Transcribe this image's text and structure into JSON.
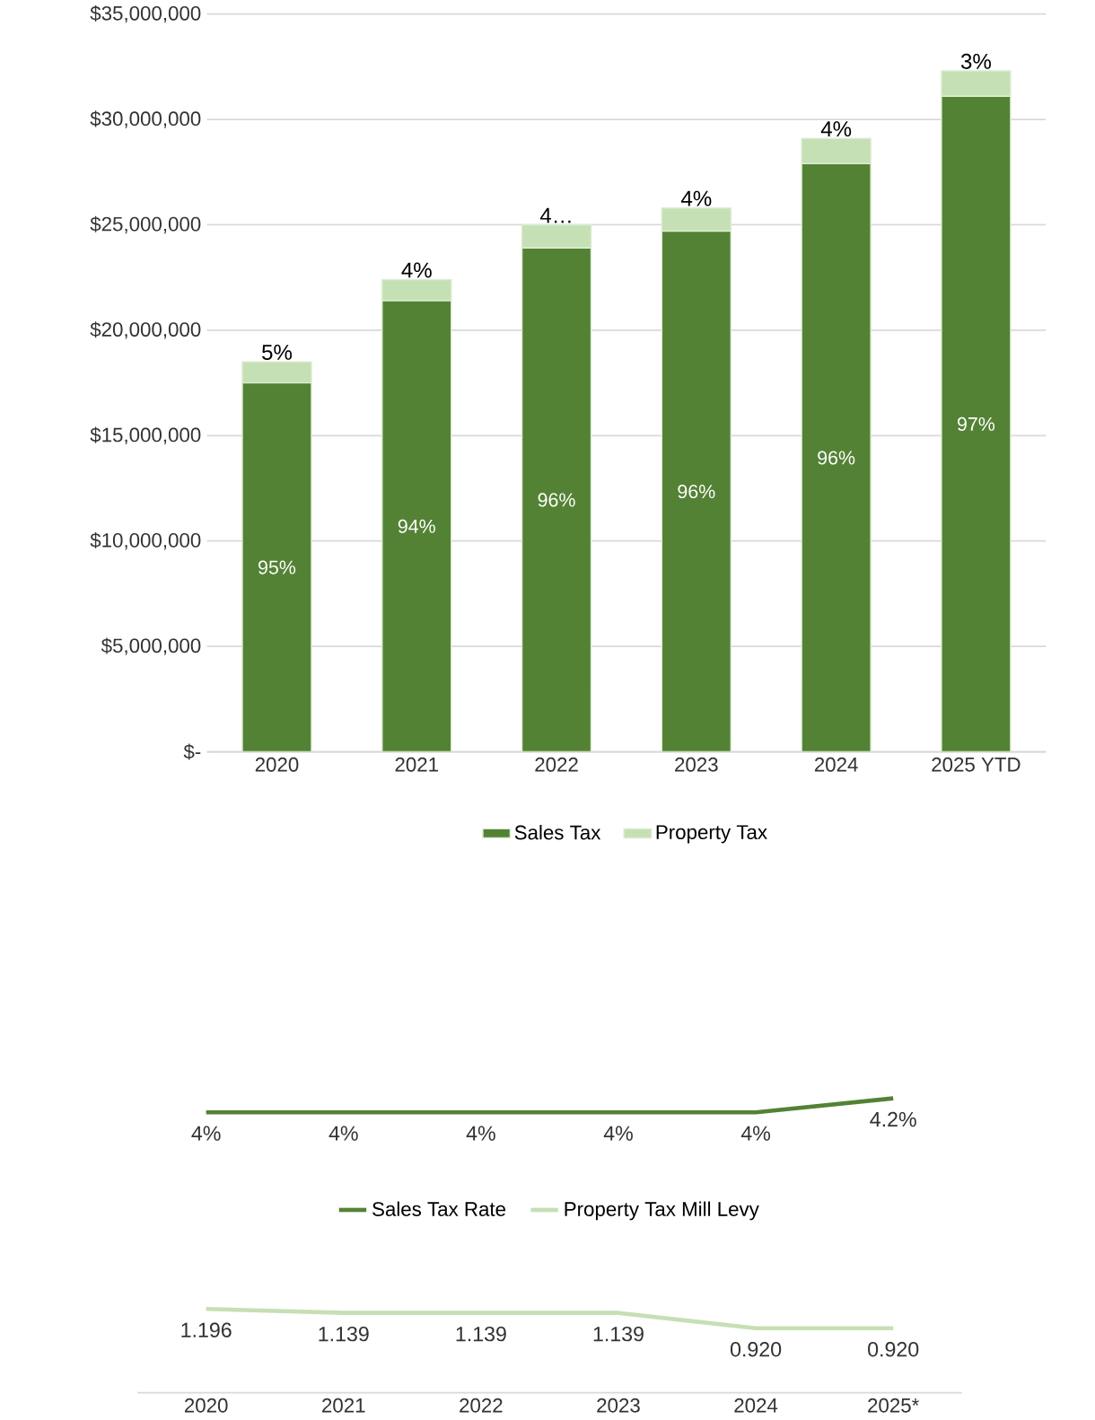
{
  "chart_data": [
    {
      "type": "bar",
      "stacked": true,
      "categories": [
        "2020",
        "2021",
        "2022",
        "2023",
        "2024",
        "2025 YTD"
      ],
      "series": [
        {
          "name": "Sales Tax",
          "color": "#548235",
          "values": [
            17500000,
            21400000,
            23900000,
            24700000,
            27900000,
            31100000
          ]
        },
        {
          "name": "Property Tax",
          "color": "#c5e0b4",
          "values": [
            1000000,
            1000000,
            1100000,
            1100000,
            1200000,
            1200000
          ]
        }
      ],
      "annotations": [
        "95%",
        "94%",
        "96%",
        "96%",
        "96%",
        "97%",
        {
          "text": "5%",
          "x": "2020",
          "y": 18500000
        },
        {
          "text": "4%",
          "x": "2021",
          "y": 22400000
        },
        {
          "text": "4…",
          "x": "2022",
          "y": 25000000
        },
        {
          "text": "4%",
          "x": "2023",
          "y": 25800000
        },
        {
          "text": "4%",
          "x": "2024",
          "y": 29100000
        },
        {
          "text": "3%",
          "x": "2025 YTD",
          "y": 32300000
        }
      ],
      "ylim": [
        0,
        35000000
      ],
      "yticks": [
        {
          "value": 0,
          "label": "$-"
        },
        {
          "value": 5000000,
          "label": "$5,000,000"
        },
        {
          "value": 10000000,
          "label": "$10,000,000"
        },
        {
          "value": 15000000,
          "label": "$15,000,000"
        },
        {
          "value": 20000000,
          "label": "$20,000,000"
        },
        {
          "value": 25000000,
          "label": "$25,000,000"
        },
        {
          "value": 30000000,
          "label": "$30,000,000"
        },
        {
          "value": 35000000,
          "label": "$35,000,000"
        }
      ],
      "grid": "y",
      "legend": "bottom"
    },
    {
      "type": "line",
      "categories": [
        "2020",
        "2021",
        "2022",
        "2023",
        "2024",
        "2025*"
      ],
      "series": [
        {
          "name": "Sales Tax Rate",
          "color": "#548235",
          "values": [
            4,
            4,
            4,
            4,
            4,
            4.2
          ],
          "value_labels": [
            "4%",
            "4%",
            "4%",
            "4%",
            "4%",
            "4.2%"
          ]
        },
        {
          "name": "Property Tax Mill Levy",
          "color": "#c5e0b4",
          "values": [
            1.196,
            1.139,
            1.139,
            1.139,
            0.92,
            0.92
          ],
          "value_labels": [
            "1.196",
            "1.139",
            "1.139",
            "1.139",
            "0.920",
            "0.920"
          ]
        }
      ],
      "tick_labels": "x",
      "legend": "center",
      "grid": false,
      "marker": "none"
    }
  ]
}
